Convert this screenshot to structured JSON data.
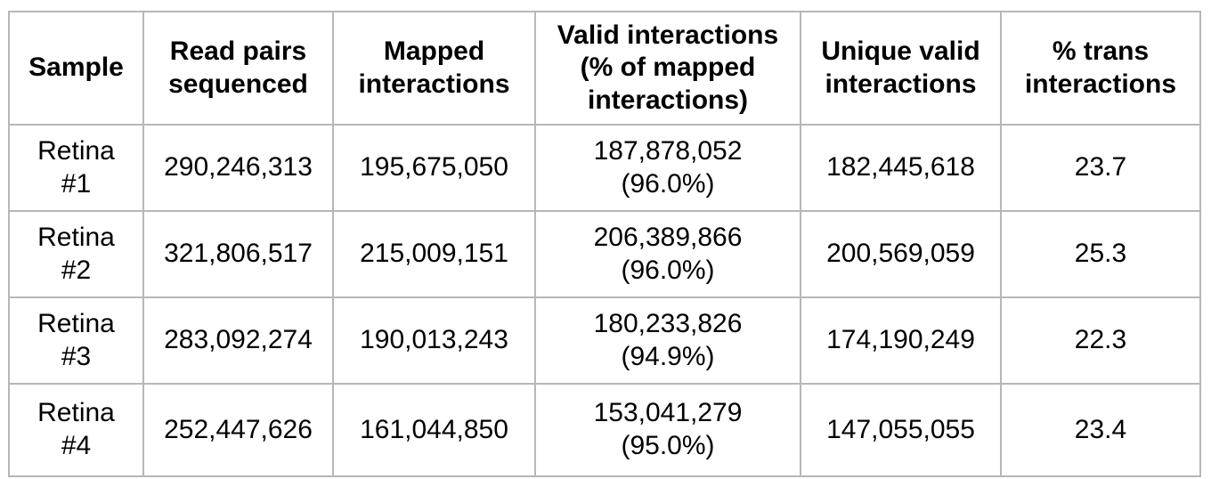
{
  "colors": {
    "border": "#b7b7b7",
    "text": "#000000",
    "background": "#ffffff"
  },
  "table": {
    "columns": [
      {
        "key": "sample",
        "lines": [
          "Sample"
        ]
      },
      {
        "key": "read_pairs",
        "lines": [
          "Read pairs",
          "sequenced"
        ]
      },
      {
        "key": "mapped",
        "lines": [
          "Mapped",
          "interactions"
        ]
      },
      {
        "key": "valid",
        "lines": [
          "Valid interactions",
          "(% of mapped",
          "interactions)"
        ]
      },
      {
        "key": "unique_valid",
        "lines": [
          "Unique valid",
          "interactions"
        ]
      },
      {
        "key": "pct_trans",
        "lines": [
          "% trans",
          "interactions"
        ]
      }
    ],
    "rows": [
      {
        "sample_lines": [
          "Retina",
          "#1"
        ],
        "read_pairs": "290,246,313",
        "mapped": "195,675,050",
        "valid_lines": [
          "187,878,052",
          "(96.0%)"
        ],
        "unique_valid": "182,445,618",
        "pct_trans": "23.7"
      },
      {
        "sample_lines": [
          "Retina",
          "#2"
        ],
        "read_pairs": "321,806,517",
        "mapped": "215,009,151",
        "valid_lines": [
          "206,389,866",
          "(96.0%)"
        ],
        "unique_valid": "200,569,059",
        "pct_trans": "25.3"
      },
      {
        "sample_lines": [
          "Retina",
          "#3"
        ],
        "read_pairs": "283,092,274",
        "mapped": "190,013,243",
        "valid_lines": [
          "180,233,826",
          "(94.9%)"
        ],
        "unique_valid": "174,190,249",
        "pct_trans": "22.3"
      },
      {
        "sample_lines": [
          "Retina",
          "#4"
        ],
        "read_pairs": "252,447,626",
        "mapped": "161,044,850",
        "valid_lines": [
          "153,041,279",
          "(95.0%)"
        ],
        "unique_valid": "147,055,055",
        "pct_trans": "23.4"
      }
    ]
  }
}
